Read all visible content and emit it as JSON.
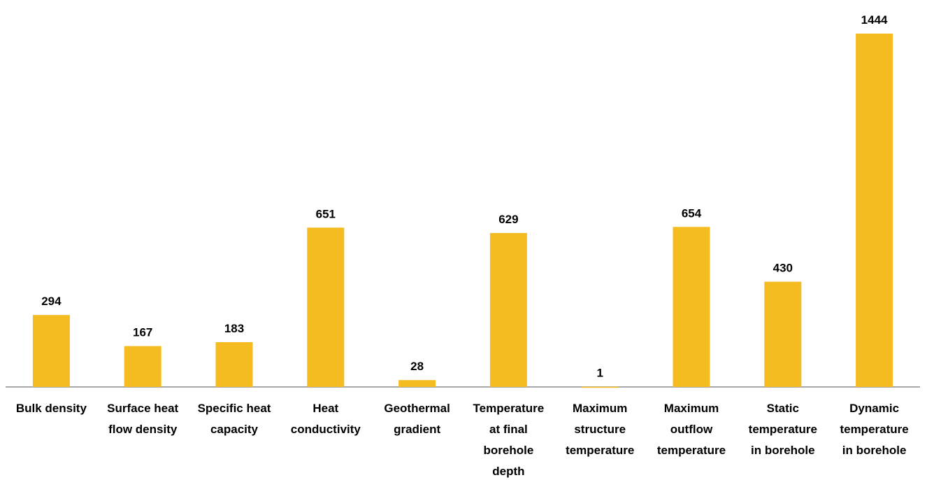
{
  "chart_data": {
    "type": "bar",
    "title": "",
    "xlabel": "",
    "ylabel": "",
    "categories": [
      "Bulk density",
      "Surface heat flow density",
      "Specific heat capacity",
      "Heat conductivity",
      "Geothermal gradient",
      "Temperature at final borehole depth",
      "Maximum structure temperature",
      "Maximum outflow temperature",
      "Static temperature in borehole",
      "Dynamic temperature in borehole"
    ],
    "category_label_lines": [
      [
        "Bulk density"
      ],
      [
        "Surface heat",
        "flow density"
      ],
      [
        "Specific heat",
        "capacity"
      ],
      [
        "Heat",
        "conductivity"
      ],
      [
        "Geothermal",
        "gradient"
      ],
      [
        "Temperature",
        "at final",
        "borehole",
        "depth"
      ],
      [
        "Maximum",
        "structure",
        "temperature"
      ],
      [
        "Maximum",
        "outflow",
        "temperature"
      ],
      [
        "Static",
        "temperature",
        "in borehole"
      ],
      [
        "Dynamic",
        "temperature",
        "in borehole"
      ]
    ],
    "values": [
      294,
      167,
      183,
      651,
      28,
      629,
      1,
      654,
      430,
      1444
    ],
    "value_labels": [
      "294",
      "167",
      "183",
      "651",
      "28",
      "629",
      "1",
      "654",
      "430",
      "1444"
    ],
    "ylim": [
      0,
      1444
    ],
    "grid": false,
    "y_axis_visible": false,
    "legend": "none",
    "colors": {
      "bar": "#F5BC22",
      "axis": "#8C8C8C",
      "text": "#000000"
    }
  }
}
